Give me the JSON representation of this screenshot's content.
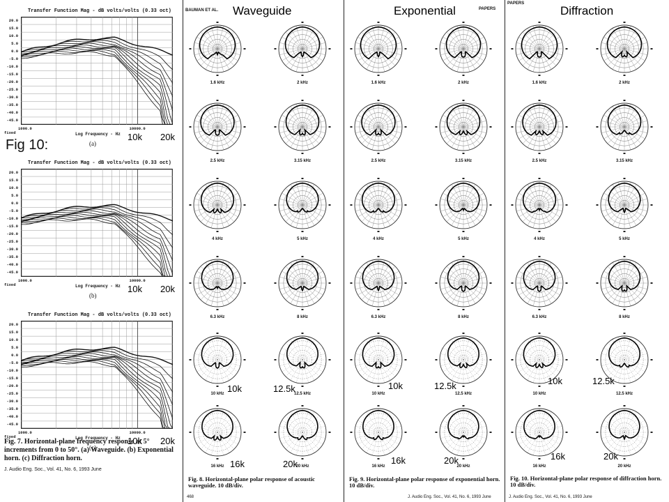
{
  "fig_label": "Fig 10:",
  "fig7": {
    "plots": [
      {
        "title": "Transfer Function Mag - dB volts/volts (0.33 oct)",
        "sub": "(a)",
        "ann10": "10k",
        "ann20": "20k"
      },
      {
        "title": "Transfer Function Mag - dB volts/volts (0.33 oct)",
        "sub": "(b)",
        "ann10": "10k",
        "ann20": "20k"
      },
      {
        "title": "Transfer Function Mag - dB volts/volts (0.33 oct)",
        "sub": "(c)",
        "ann10": "10k",
        "ann20": "20k"
      }
    ],
    "yticks": [
      "20.0",
      "15.0",
      "10.0",
      "5.0",
      "0.0",
      "-5.0",
      "-10.0",
      "-15.0",
      "-20.0",
      "-25.0",
      "-30.0",
      "-35.0",
      "-40.0",
      "-45.0"
    ],
    "x_start": "1000.0",
    "x_mid": "10000.0",
    "x_end": "fixed",
    "xlabel": "Log Frequency - Hz",
    "caption": "Fig. 7. Horizontal-plane frequency response at 5° increments from 0 to 50°. (a) Waveguide. (b) Exponential horn. (c) Diffraction horn.",
    "journal": "J. Audio Eng. Soc., Vol. 41, No. 6, 1993 June"
  },
  "columns": [
    {
      "heading": "Waveguide",
      "small_header": "BAUMAN ET AL.",
      "labels": [
        "1.6 kHz",
        "2 kHz",
        "2.5 kHz",
        "3.15 kHz",
        "4 kHz",
        "5 kHz",
        "6.3 kHz",
        "8 kHz",
        "10 kHz",
        "12.5 kHz",
        "16 kHz",
        "20 kHz"
      ],
      "ann": [
        "10k",
        "12.5k",
        "16k",
        "20k"
      ],
      "caption": "Fig. 8. Horizontal-plane polar response of acoustic waveguide. 10 dB/div.",
      "footer": "468"
    },
    {
      "heading": "Exponential",
      "small_header": "PAPERS",
      "labels": [
        "1.6 kHz",
        "2 kHz",
        "2.5 kHz",
        "3.15 kHz",
        "4 kHz",
        "5 kHz",
        "6.3 kHz",
        "8 kHz",
        "10 kHz",
        "12.5 kHz",
        "16 kHz",
        "20 kHz"
      ],
      "ann": [
        "10k",
        "12.5k",
        "16k",
        "20k"
      ],
      "caption": "Fig. 9. Horizontal-plane polar response of exponential horn. 10 dB/div.",
      "footer": "J. Audio Eng. Soc., Vol. 41, No. 6, 1993 June"
    },
    {
      "heading": "Diffraction",
      "small_header": "PAPERS",
      "labels": [
        "1.6 kHz",
        "2 kHz",
        "2.5 kHz",
        "3.15 kHz",
        "4 kHz",
        "5 kHz",
        "6.3 kHz",
        "8 kHz",
        "10 kHz",
        "12.5 kHz",
        "16 kHz",
        "20 kHz"
      ],
      "ann": [
        "10k",
        "12.5k",
        "16k",
        "20k"
      ],
      "caption": "Fig. 10. Horizontal-plane polar response of diffraction horn. 10 dB/div.",
      "footer": "J. Audio Eng. Soc., Vol. 41, No. 6, 1993 June"
    }
  ]
}
